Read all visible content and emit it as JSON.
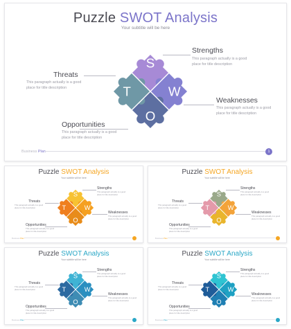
{
  "main": {
    "title_plain": "Puzzle",
    "title_accent": "SWOT Analysis",
    "subtitle": "Your subtitle will be here",
    "accent": "#7b74c9",
    "colors": {
      "s": "#a78ad6",
      "w": "#8481d1",
      "o": "#5d6fa1",
      "t": "#6f98a6"
    },
    "letters": {
      "s": "S",
      "w": "W",
      "o": "O",
      "t": "T"
    },
    "labels": {
      "strengths": "Strengths",
      "weaknesses": "Weaknesses",
      "threats": "Threats",
      "opportunities": "Opportunities"
    },
    "description": "This paragraph actually is a good place for title description",
    "footer_plain": "Business",
    "footer_accent": "Plan",
    "page": "1"
  },
  "variants": [
    {
      "accent": "#f5a623",
      "colors": {
        "s": "#f7c232",
        "w": "#f5a020",
        "o": "#e88c1a",
        "t": "#ef7f1e"
      }
    },
    {
      "accent": "#f5a623",
      "colors": {
        "s": "#9aa98a",
        "w": "#f3a33a",
        "o": "#e9b52c",
        "t": "#e49aaa"
      }
    },
    {
      "accent": "#2aa7c6",
      "colors": {
        "s": "#3fb3d4",
        "w": "#2a8fc0",
        "o": "#3e8cb4",
        "t": "#2c6aa1"
      }
    },
    {
      "accent": "#2aa7c6",
      "colors": {
        "s": "#2fc4d2",
        "w": "#1fa1c3",
        "o": "#1f7fb3",
        "t": "#1f5c99"
      }
    }
  ]
}
